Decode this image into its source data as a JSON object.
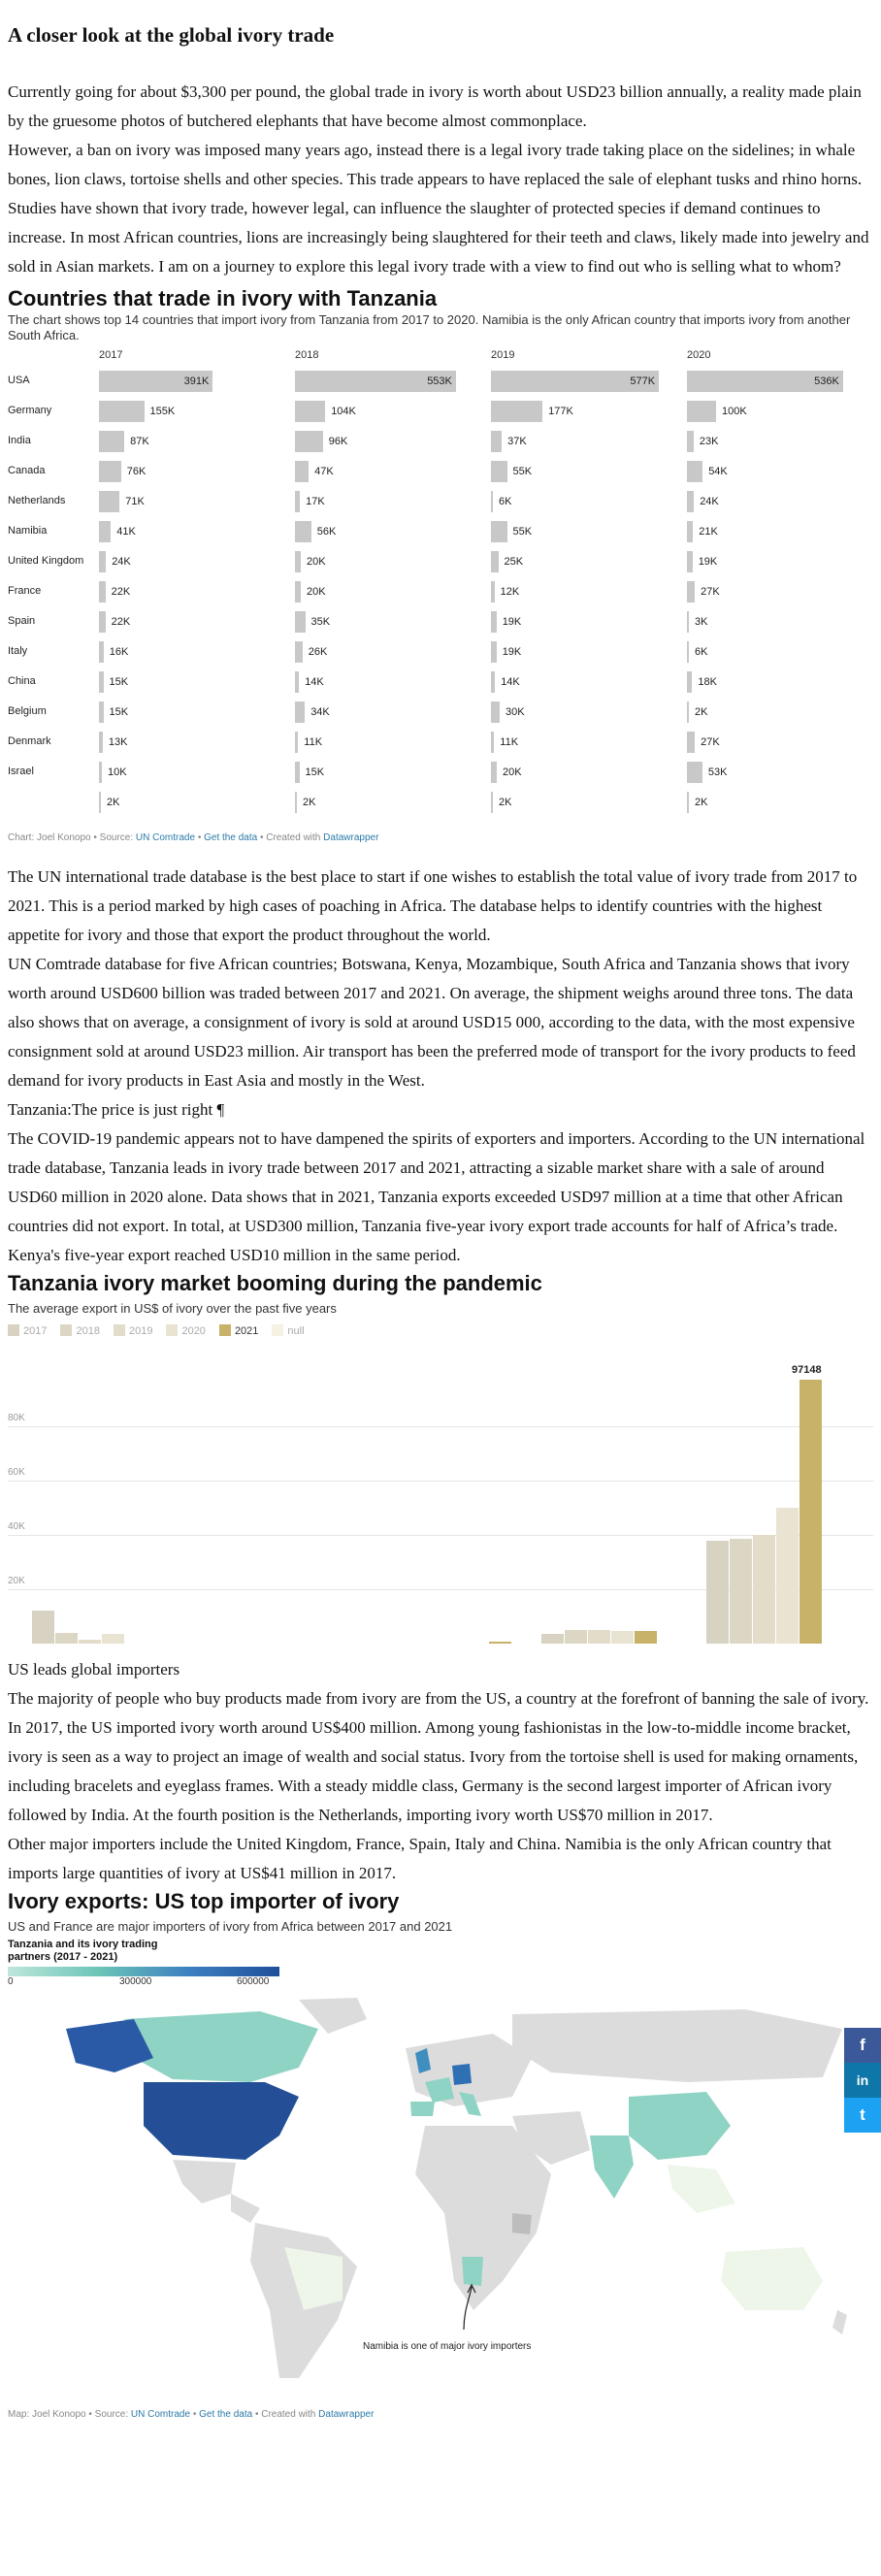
{
  "article": {
    "title": "A closer look at the global ivory trade",
    "p1": "Currently going for about $3,300 per pound, the global trade in ivory is worth about USD23 billion annually, a reality made plain by the gruesome photos of butchered elephants that have become almost commonplace.",
    "p2": "However, a ban on ivory was imposed many years ago, instead there is a legal ivory trade taking place on the sidelines; in whale bones, lion claws, tortoise shells and other species. This trade appears to have replaced the sale of elephant tusks and rhino horns. Studies have shown that ivory trade, however legal, can influence the slaughter of protected species if demand continues to increase. In most African countries, lions are increasingly being slaughtered for their teeth and claws, likely made into jewelry and sold in Asian markets. I am on a journey to explore this legal ivory trade with a view to find out who is selling what to whom?",
    "p3": "The UN international trade database is the best place to start if one wishes to establish the total value of ivory trade from 2017 to 2021. This is a period marked by high cases of poaching in Africa. The database helps to identify countries with the highest appetite for ivory and those that export the product throughout the world.",
    "p4": "UN Comtrade database for five African countries; Botswana, Kenya, Mozambique, South Africa and Tanzania shows that ivory worth around USD600 billion was traded between 2017 and 2021. On average, the shipment weighs around three tons. The data also shows that on average, a consignment of ivory is sold at around USD15 000, according to the data, with the most expensive consignment sold at around USD23 million. Air transport has been the preferred mode of transport for the ivory products to feed demand for ivory products in East Asia and mostly in the West.",
    "h_tz": "Tanzania:The price is just right ¶",
    "p5": "The COVID-19 pandemic appears not to have dampened the spirits of exporters and importers. According to the UN international trade database, Tanzania leads in ivory trade between 2017 and 2021, attracting a sizable market share with a sale of around USD60 million in 2020 alone. Data shows that in 2021, Tanzania exports exceeded USD97 million at a time that other African countries did not export. In total, at USD300 million, Tanzania five-year ivory export trade accounts for half of Africa’s trade. Kenya's five-year export reached USD10 million in the same period.",
    "h_us": "US leads global importers",
    "p6": "The majority of people who buy products made from ivory are from the US, a country at the forefront of banning the sale of ivory. In 2017, the US imported ivory worth around US$400 million. Among young fashionistas in the low-to-middle income bracket, ivory is seen as a way to project an image of wealth and social status. Ivory from the tortoise shell is used for making ornaments, including bracelets and eyeglass frames. With a steady middle class, Germany is the second largest importer of African ivory followed by India. At the fourth position is the Netherlands, importing ivory worth US$70 million in 2017.",
    "p7": "Other major importers include the United Kingdom, France, Spain, Italy and China. Namibia is the only African country that imports large quantities of ivory at US$41 million in 2017."
  },
  "chart1": {
    "title": "Countries that trade in ivory with Tanzania",
    "desc": "The chart shows top 14 countries that import ivory from Tanzania from 2017 to 2020. Namibia is the only African country that imports ivory from another South Africa.",
    "credit_prefix": "Chart: Joel Konopo • Source: ",
    "src": "UN Comtrade",
    "sep": " • ",
    "getdata": "Get the data",
    "created": " • Created with ",
    "dw": "Datawrapper"
  },
  "chart_data": [
    {
      "type": "bar",
      "title": "Countries that trade in ivory with Tanzania",
      "categories": [
        "USA",
        "Germany",
        "India",
        "Canada",
        "Netherlands",
        "Namibia",
        "United Kingdom",
        "France",
        "Spain",
        "Italy",
        "China",
        "Belgium",
        "Denmark",
        "Israel",
        ""
      ],
      "series": [
        {
          "name": "2017",
          "values": [
            391,
            155,
            87,
            76,
            71,
            41,
            24,
            22,
            22,
            16,
            15,
            15,
            13,
            10,
            2
          ],
          "labels": [
            "391K",
            "155K",
            "87K",
            "76K",
            "71K",
            "41K",
            "24K",
            "22K",
            "22K",
            "16K",
            "15K",
            "15K",
            "13K",
            "10K",
            "2K"
          ]
        },
        {
          "name": "2018",
          "values": [
            553,
            104,
            96,
            47,
            17,
            56,
            20,
            20,
            35,
            26,
            14,
            34,
            11,
            15,
            2
          ],
          "labels": [
            "553K",
            "104K",
            "96K",
            "47K",
            "17K",
            "56K",
            "20K",
            "20K",
            "35K",
            "26K",
            "14K",
            "34K",
            "11K",
            "15K",
            "2K"
          ]
        },
        {
          "name": "2019",
          "values": [
            577,
            177,
            37,
            55,
            6,
            55,
            25,
            12,
            19,
            19,
            14,
            30,
            11,
            20,
            2
          ],
          "labels": [
            "577K",
            "177K",
            "37K",
            "55K",
            "6K",
            "55K",
            "25K",
            "12K",
            "19K",
            "19K",
            "14K",
            "30K",
            "11K",
            "20K",
            "2K"
          ]
        },
        {
          "name": "2020",
          "values": [
            536,
            100,
            23,
            54,
            24,
            21,
            19,
            27,
            3,
            6,
            18,
            2,
            27,
            53,
            2
          ],
          "labels": [
            "536K",
            "100K",
            "23K",
            "54K",
            "24K",
            "21K",
            "19K",
            "27K",
            "3K",
            "6K",
            "18K",
            "2K",
            "27K",
            "53K",
            "2K"
          ]
        }
      ]
    },
    {
      "type": "bar",
      "title": "Tanzania ivory market booming during the pandemic",
      "subtitle": "The average export in US$ of ivory over the past five years",
      "legend": [
        "2017",
        "2018",
        "2019",
        "2020",
        "2021",
        "null"
      ],
      "ylim": [
        0,
        100000
      ],
      "yticks": [
        "20K",
        "40K",
        "60K",
        "80K"
      ],
      "groups": [
        {
          "values": [
            12000,
            4000,
            1500,
            3500,
            0
          ]
        },
        {
          "values": [
            0,
            0,
            0,
            0,
            0
          ]
        },
        {
          "values": [
            0,
            0,
            0,
            0,
            0
          ]
        },
        {
          "values": [
            0,
            0,
            0,
            0,
            0
          ]
        },
        {
          "values": [
            0,
            0,
            0,
            0,
            800
          ]
        },
        {
          "values": [
            0,
            0,
            0,
            0,
            0
          ]
        },
        {
          "values": [
            3500,
            5000,
            5000,
            4500,
            4500
          ]
        },
        {
          "values": [
            38000,
            38500,
            40000,
            50000,
            97148
          ]
        }
      ],
      "top_label": "97148"
    },
    {
      "type": "map",
      "title": "Ivory exports: US top importer of ivory",
      "subtitle": "US and France are major importers of ivory from Africa between 2017 and 2021",
      "legend_title": "Tanzania and its ivory trading partners (2017 - 2021)",
      "scale": [
        "0",
        "300000",
        "600000"
      ],
      "annotation": "Namibia is one of major ivory importers"
    }
  ],
  "chart2": {
    "title": "Tanzania ivory market booming during the pandemic",
    "subtitle": "The average export in US$ of ivory over the past five years",
    "colors": [
      "#d7d2c2",
      "#dcd7c5",
      "#e2dcc9",
      "#e9e3d2",
      "#c8b26a",
      "#f5f1e3"
    ]
  },
  "chart3": {
    "title": "Ivory exports: US top importer of ivory",
    "subtitle": "US and France are major importers of ivory from Africa between 2017 and 2021",
    "legend_title": "Tanzania and its ivory trading partners (2017 - 2021)",
    "annotation": "Namibia is one of major ivory importers",
    "credit_prefix": "Map: Joel Konopo • Source: "
  },
  "social": {
    "fb": "f",
    "li": "in",
    "tw": "t"
  }
}
